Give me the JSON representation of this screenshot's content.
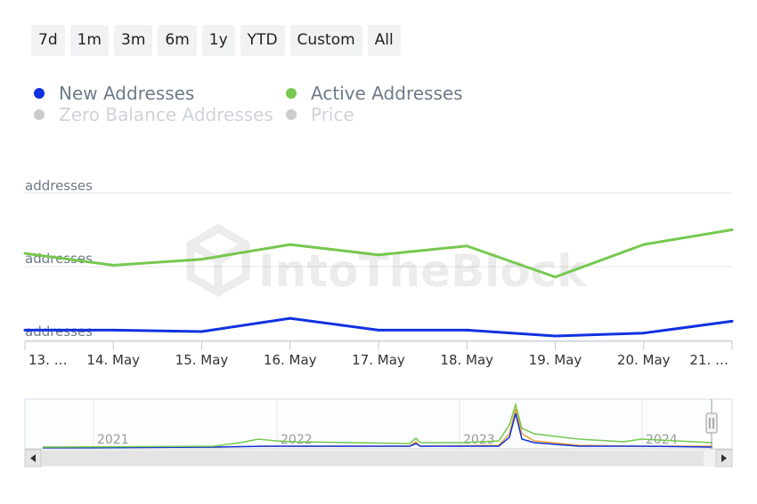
{
  "range_buttons": [
    "7d",
    "1m",
    "3m",
    "6m",
    "1y",
    "YTD",
    "Custom",
    "All"
  ],
  "legend": [
    {
      "label": "New Addresses",
      "color": "#1032e0",
      "enabled": true
    },
    {
      "label": "Active Addresses",
      "color": "#76c850",
      "enabled": true
    },
    {
      "label": "Zero Balance Addresses",
      "color": "#cccccc",
      "enabled": false
    },
    {
      "label": "Price",
      "color": "#cccccc",
      "enabled": false
    }
  ],
  "watermark": "IntoTheBlock",
  "chart_data": {
    "type": "line",
    "x": [
      "13. May",
      "14. May",
      "15. May",
      "16. May",
      "17. May",
      "18. May",
      "19. May",
      "20. May",
      "21. May"
    ],
    "x_tick_labels": [
      "13. …",
      "14. May",
      "15. May",
      "16. May",
      "17. May",
      "18. May",
      "19. May",
      "20. May",
      "21. …"
    ],
    "y_tick_labels": [
      "addresses",
      "addresses",
      "addresses"
    ],
    "series": [
      {
        "name": "Active Addresses",
        "color": "#76c850",
        "values": [
          0.59,
          0.51,
          0.55,
          0.65,
          0.58,
          0.64,
          0.43,
          0.65,
          0.75
        ]
      },
      {
        "name": "New Addresses",
        "color": "#1032e0",
        "values": [
          0.07,
          0.07,
          0.06,
          0.15,
          0.07,
          0.07,
          0.03,
          0.05,
          0.13
        ]
      }
    ],
    "ylim": [
      0,
      1
    ],
    "grid": true,
    "navigator": {
      "year_labels": [
        "2021",
        "2022",
        "2023",
        "2024"
      ]
    }
  }
}
